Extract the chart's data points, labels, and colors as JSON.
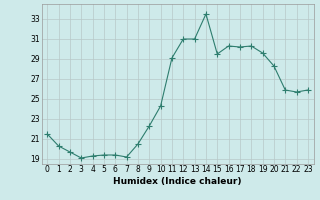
{
  "x": [
    0,
    1,
    2,
    3,
    4,
    5,
    6,
    7,
    8,
    9,
    10,
    11,
    12,
    13,
    14,
    15,
    16,
    17,
    18,
    19,
    20,
    21,
    22,
    23
  ],
  "y": [
    21.5,
    20.3,
    19.7,
    19.1,
    19.3,
    19.4,
    19.4,
    19.2,
    20.5,
    22.3,
    24.3,
    29.1,
    31.0,
    31.0,
    33.5,
    29.5,
    30.3,
    30.2,
    30.3,
    29.6,
    28.3,
    25.9,
    25.7,
    25.9
  ],
  "line_color": "#2e7d6e",
  "marker": "+",
  "marker_size": 4,
  "marker_linewidth": 0.8,
  "bg_color": "#ceeaea",
  "grid_color": "#b8c8c8",
  "xlabel": "Humidex (Indice chaleur)",
  "ylim": [
    18.5,
    34.5
  ],
  "xlim": [
    -0.5,
    23.5
  ],
  "yticks": [
    19,
    21,
    23,
    25,
    27,
    29,
    31,
    33
  ],
  "xticks": [
    0,
    1,
    2,
    3,
    4,
    5,
    6,
    7,
    8,
    9,
    10,
    11,
    12,
    13,
    14,
    15,
    16,
    17,
    18,
    19,
    20,
    21,
    22,
    23
  ],
  "xtick_labels": [
    "0",
    "1",
    "2",
    "3",
    "4",
    "5",
    "6",
    "7",
    "8",
    "9",
    "10",
    "11",
    "12",
    "13",
    "14",
    "15",
    "16",
    "17",
    "18",
    "19",
    "20",
    "21",
    "22",
    "23"
  ]
}
